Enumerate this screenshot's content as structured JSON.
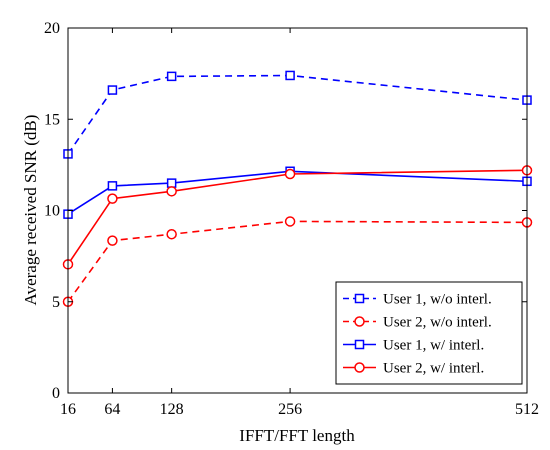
{
  "chart_data": {
    "type": "line",
    "title": "",
    "xlabel": "IFFT/FFT length",
    "ylabel": "Average received SNR (dB)",
    "x": [
      16,
      64,
      128,
      256,
      512
    ],
    "xticks": [
      "16",
      "64",
      "128",
      "256",
      "512"
    ],
    "xlim": [
      16,
      512
    ],
    "ylim": [
      0,
      20
    ],
    "yticks": [
      "0",
      "5",
      "10",
      "15",
      "20"
    ],
    "grid": false,
    "legend_position": "bottom-right",
    "series": [
      {
        "name": "User 1, w/o interl.",
        "color": "#0000ff",
        "dash": "dashed",
        "marker": "square",
        "values": [
          13.1,
          16.6,
          17.35,
          17.4,
          16.05
        ]
      },
      {
        "name": "User 2, w/o interl.",
        "color": "#ff0000",
        "dash": "dashed",
        "marker": "circle",
        "values": [
          5.0,
          8.35,
          8.7,
          9.4,
          9.35
        ]
      },
      {
        "name": "User 1, w/ interl.",
        "color": "#0000ff",
        "dash": "solid",
        "marker": "square",
        "values": [
          9.8,
          11.35,
          11.5,
          12.15,
          11.6
        ]
      },
      {
        "name": "User 2, w/ interl.",
        "color": "#ff0000",
        "dash": "solid",
        "marker": "circle",
        "values": [
          7.05,
          10.65,
          11.05,
          12.0,
          12.2
        ]
      }
    ]
  }
}
